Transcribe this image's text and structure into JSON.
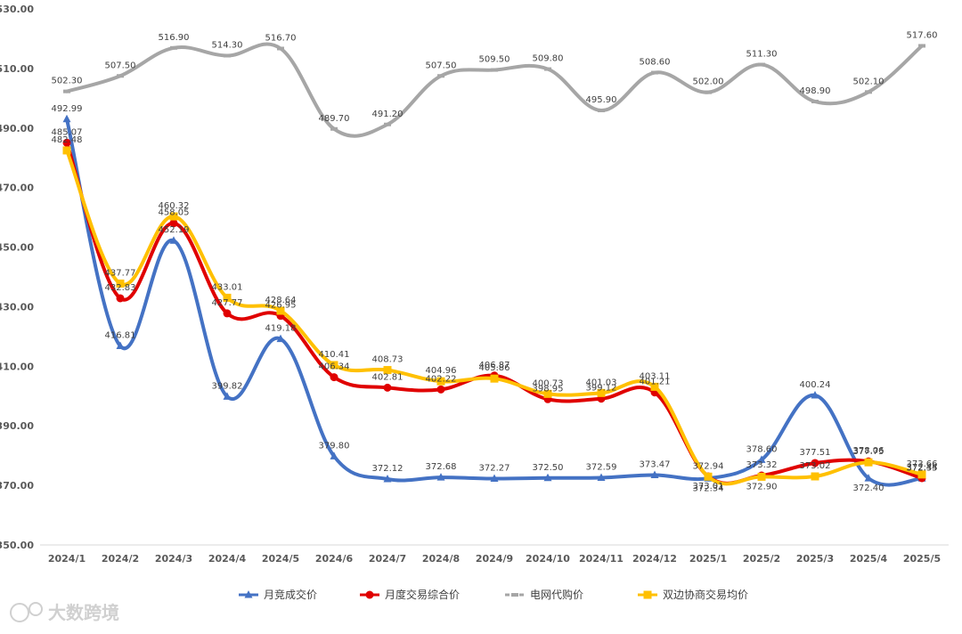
{
  "chart_data": {
    "type": "line",
    "title": "",
    "xlabel": "",
    "ylabel": "",
    "ylim": [
      350,
      530
    ],
    "y_ticks": [
      "350.00",
      "370.00",
      "390.00",
      "410.00",
      "430.00",
      "450.00",
      "470.00",
      "490.00",
      "510.00",
      "530.00"
    ],
    "categories": [
      "2024/1",
      "2024/2",
      "2024/3",
      "2024/4",
      "2024/5",
      "2024/6",
      "2024/7",
      "2024/8",
      "2024/9",
      "2024/10",
      "2024/11",
      "2024/12",
      "2025/1",
      "2025/2",
      "2025/3",
      "2025/4",
      "2025/5"
    ],
    "grid": false,
    "legend_position": "bottom",
    "series": [
      {
        "name": "月竞成交价",
        "color": "#4472C4",
        "marker": "triangle",
        "values": [
          492.99,
          416.81,
          452.19,
          399.82,
          419.18,
          379.8,
          372.12,
          372.68,
          372.27,
          372.5,
          372.59,
          373.47,
          372.34,
          378.6,
          400.24,
          372.4,
          372.35
        ],
        "labels": [
          "492.99",
          "416.81",
          "452.19",
          "399.82",
          "419.18",
          "379.80",
          "372.12",
          "372.68",
          "372.27",
          "372.50",
          "372.59",
          "373.47",
          "372.34",
          "378.60",
          "400.24",
          "372.40",
          "372.35"
        ]
      },
      {
        "name": "月度交易综合价",
        "color": "#E00000",
        "marker": "circle",
        "values": [
          485.07,
          432.83,
          458.05,
          427.77,
          426.95,
          406.34,
          402.81,
          402.22,
          406.87,
          398.95,
          399.12,
          401.21,
          373.01,
          373.32,
          377.51,
          378.06,
          372.44
        ],
        "labels": [
          "485.07",
          "432.83",
          "458.05",
          "427.77",
          "426.95",
          "406.34",
          "402.81",
          "402.22",
          "406.87",
          "398.95",
          "399.12",
          "401.21",
          "373.01",
          "373.32",
          "377.51",
          "378.06",
          "372.44"
        ]
      },
      {
        "name": "电网代购价",
        "color": "#A6A6A6",
        "marker": "dash",
        "values": [
          502.3,
          507.5,
          516.9,
          514.3,
          516.7,
          489.7,
          491.2,
          507.5,
          509.5,
          509.8,
          495.9,
          508.6,
          502.0,
          511.3,
          498.9,
          502.1,
          517.6
        ],
        "labels": [
          "502.30",
          "507.50",
          "516.90",
          "514.30",
          "516.70",
          "489.70",
          "491.20",
          "507.50",
          "509.50",
          "509.80",
          "495.90",
          "508.60",
          "502.00",
          "511.30",
          "498.90",
          "502.10",
          "517.60"
        ]
      },
      {
        "name": "双边协商交易均价",
        "color": "#FFC000",
        "marker": "square",
        "values": [
          482.48,
          437.77,
          460.32,
          433.01,
          428.64,
          410.41,
          408.73,
          404.96,
          405.86,
          400.73,
          401.03,
          403.11,
          372.94,
          372.9,
          373.02,
          377.75,
          373.66
        ],
        "labels": [
          "482.48",
          "437.77",
          "460.32",
          "433.01",
          "428.64",
          "410.41",
          "408.73",
          "404.96",
          "405.86",
          "400.73",
          "401.03",
          "403.11",
          "372.94",
          "372.90",
          "373.02",
          "377.75",
          "373.66"
        ]
      }
    ]
  },
  "watermark": {
    "text": "大数跨境"
  }
}
